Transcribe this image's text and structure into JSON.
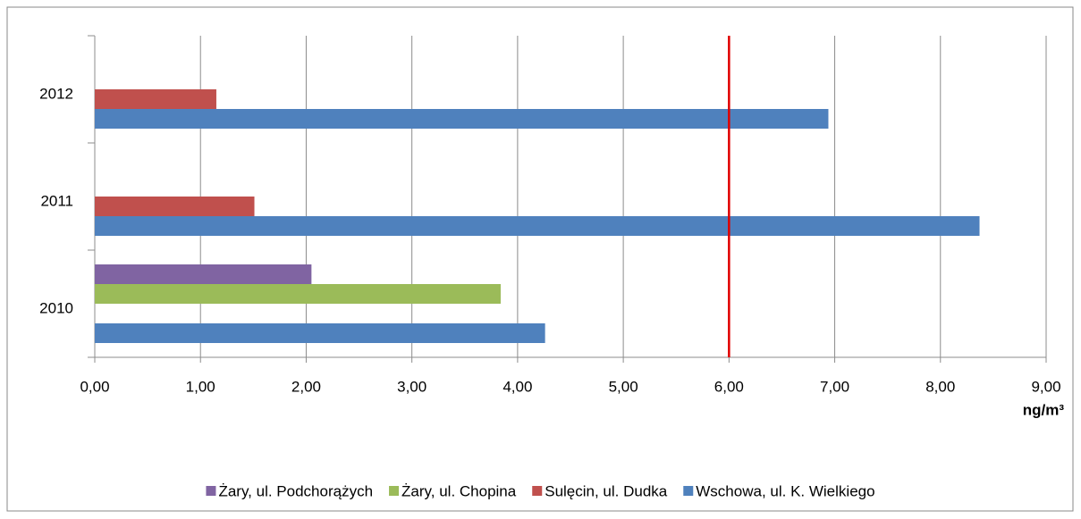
{
  "chart_data": {
    "type": "hbar",
    "categories": [
      "2010",
      "2011",
      "2012"
    ],
    "series": [
      {
        "name": "Żary, ul. Podchorążych",
        "color": "#8064a2",
        "values": [
          2.05,
          null,
          null
        ]
      },
      {
        "name": "Żary, ul. Chopina",
        "color": "#9bbb59",
        "values": [
          3.84,
          null,
          null
        ]
      },
      {
        "name": "Sulęcin, ul. Dudka",
        "color": "#c0504d",
        "values": [
          null,
          1.51,
          1.15
        ]
      },
      {
        "name": "Wschowa, ul. K. Wielkiego",
        "color": "#4f81bd",
        "values": [
          4.26,
          8.37,
          6.94
        ]
      }
    ],
    "xlim": [
      0,
      9
    ],
    "xticks": [
      {
        "value": 0,
        "label": "0,00"
      },
      {
        "value": 1,
        "label": "1,00"
      },
      {
        "value": 2,
        "label": "2,00"
      },
      {
        "value": 3,
        "label": "3,00"
      },
      {
        "value": 4,
        "label": "4,00"
      },
      {
        "value": 5,
        "label": "5,00"
      },
      {
        "value": 6,
        "label": "6,00"
      },
      {
        "value": 7,
        "label": "7,00"
      },
      {
        "value": 8,
        "label": "8,00"
      },
      {
        "value": 9,
        "label": "9,00"
      }
    ],
    "x_axis_label": "ng/m³",
    "reference_line": {
      "value": 6,
      "color": "#e00000"
    },
    "grid": true,
    "legend": "bottom"
  }
}
